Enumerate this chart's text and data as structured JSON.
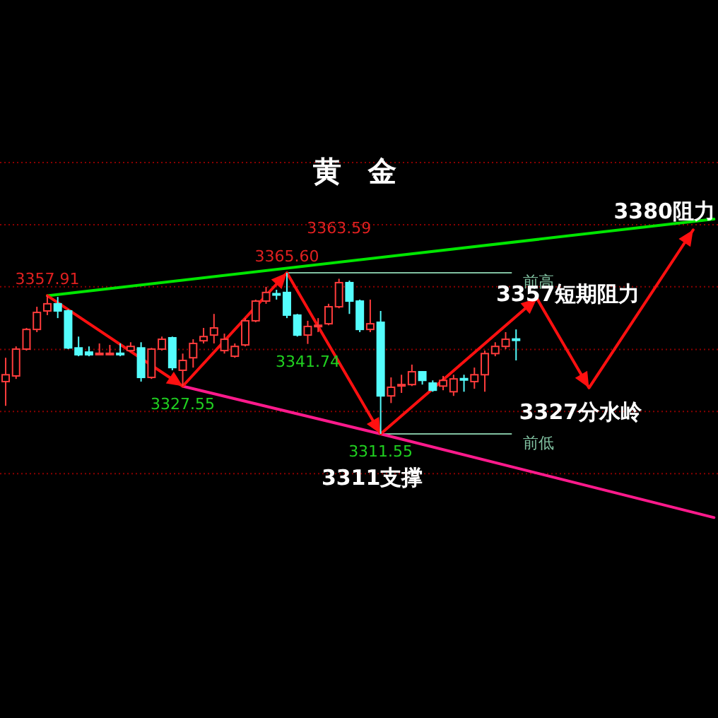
{
  "chart_data": {
    "type": "candlestick",
    "title": "黄 金",
    "categories": [
      null,
      null,
      null,
      null,
      null,
      null,
      null,
      null,
      null,
      null,
      null,
      null,
      null,
      null,
      null,
      null,
      null,
      null,
      null,
      null,
      null,
      null,
      null,
      null,
      null,
      null,
      null,
      null,
      null,
      null,
      null,
      null,
      null,
      null,
      null,
      null,
      null,
      null,
      null,
      null,
      null,
      null,
      null,
      null,
      null,
      null,
      null,
      null,
      null,
      null,
      null,
      null,
      null,
      null,
      null,
      null,
      null,
      null,
      null,
      null,
      null,
      null,
      null,
      null,
      null,
      null,
      null,
      null,
      null
    ],
    "ohlc": [
      [
        3329.1,
        3337.1,
        3321.0,
        3331.4
      ],
      [
        3331.0,
        3340.9,
        3330.0,
        3340.0
      ],
      [
        3340.0,
        3347.1,
        3339.5,
        3346.6
      ],
      [
        3346.6,
        3354.2,
        3345.7,
        3352.3
      ],
      [
        3352.8,
        3357.91,
        3351.4,
        3355.2
      ],
      [
        3355.2,
        3357.5,
        3350.4,
        3352.8
      ],
      [
        3352.8,
        3353.3,
        3340.0,
        3340.4
      ],
      [
        3340.4,
        3344.2,
        3337.6,
        3338.1
      ],
      [
        3339.0,
        3340.9,
        3337.6,
        3338.1
      ],
      [
        3338.5,
        3341.9,
        3338.1,
        3338.6
      ],
      [
        3338.5,
        3341.4,
        3338.0,
        3338.6
      ],
      [
        3338.6,
        3341.9,
        3337.6,
        3338.5
      ],
      [
        3339.5,
        3342.3,
        3339.0,
        3340.9
      ],
      [
        3340.4,
        3342.3,
        3329.1,
        3330.5
      ],
      [
        3330.5,
        3340.4,
        3330.0,
        3340.0
      ],
      [
        3340.0,
        3344.2,
        3339.5,
        3343.3
      ],
      [
        3343.8,
        3344.2,
        3332.9,
        3333.8
      ],
      [
        3332.9,
        3338.5,
        3327.55,
        3336.2
      ],
      [
        3337.1,
        3343.3,
        3333.8,
        3341.9
      ],
      [
        3342.8,
        3347.1,
        3341.9,
        3344.2
      ],
      [
        3344.7,
        3351.8,
        3341.9,
        3347.1
      ],
      [
        3339.5,
        3345.2,
        3338.5,
        3343.3
      ],
      [
        3337.6,
        3341.9,
        3337.1,
        3340.9
      ],
      [
        3341.4,
        3350.4,
        3340.9,
        3349.5
      ],
      [
        3349.5,
        3356.6,
        3349.0,
        3356.1
      ],
      [
        3356.1,
        3360.9,
        3355.2,
        3359.0
      ],
      [
        3358.6,
        3359.9,
        3356.6,
        3358.5
      ],
      [
        3359.0,
        3365.6,
        3350.4,
        3351.4
      ],
      [
        3351.4,
        3351.8,
        3344.2,
        3344.7
      ],
      [
        3344.7,
        3349.5,
        3341.74,
        3347.6
      ],
      [
        3347.9,
        3350.4,
        3345.7,
        3348.0
      ],
      [
        3348.5,
        3355.2,
        3348.0,
        3354.2
      ],
      [
        3354.2,
        3363.59,
        3353.7,
        3362.3
      ],
      [
        3362.3,
        3363.0,
        3351.8,
        3356.1
      ],
      [
        3356.1,
        3356.6,
        3345.7,
        3346.6
      ],
      [
        3346.6,
        3356.6,
        3345.7,
        3348.5
      ],
      [
        3349.0,
        3352.8,
        3311.55,
        3324.3
      ],
      [
        3324.3,
        3330.5,
        3321.9,
        3327.2
      ],
      [
        3328.0,
        3331.4,
        3325.3,
        3328.1
      ],
      [
        3328.1,
        3334.8,
        3327.6,
        3332.4
      ],
      [
        3332.4,
        3332.6,
        3328.1,
        3329.5
      ],
      [
        3328.6,
        3329.5,
        3325.7,
        3326.2
      ],
      [
        3327.6,
        3331.0,
        3326.2,
        3329.5
      ],
      [
        3325.7,
        3331.4,
        3324.3,
        3330.0
      ],
      [
        3330.1,
        3331.4,
        3325.7,
        3330.0
      ],
      [
        3329.1,
        3333.8,
        3326.7,
        3331.4
      ],
      [
        3331.4,
        3339.5,
        3325.7,
        3338.5
      ],
      [
        3338.5,
        3342.3,
        3337.6,
        3340.9
      ],
      [
        3340.9,
        3345.7,
        3340.0,
        3343.3
      ],
      [
        3343.4,
        3346.6,
        3336.2,
        3343.3
      ],
      null,
      null,
      null,
      null,
      null,
      null,
      null,
      null,
      null,
      null,
      null,
      null,
      null,
      null,
      null,
      null,
      null,
      null,
      null
    ],
    "yticks": [
      {
        "value": 3402.6,
        "label": null
      },
      {
        "value": 3381.7,
        "label": null
      },
      {
        "value": 3360.9,
        "label": null
      },
      {
        "value": 3339.9,
        "label": null
      },
      {
        "value": 3319.1,
        "label": null
      },
      {
        "value": 3298.2,
        "label": null
      }
    ],
    "grid": "y",
    "series": [
      {
        "type": "line",
        "color": "#00e600",
        "values": [
          null,
          null,
          null,
          null,
          3357.91,
          null,
          null,
          null,
          null,
          null,
          null,
          null,
          null,
          null,
          null,
          null,
          null,
          null,
          null,
          null,
          null,
          null,
          null,
          null,
          null,
          null,
          null,
          null,
          null,
          null,
          null,
          null,
          null,
          null,
          null,
          null,
          null,
          null,
          null,
          null,
          null,
          null,
          null,
          null,
          null,
          null,
          null,
          null,
          null,
          null,
          null,
          null,
          null,
          null,
          null,
          null,
          null,
          null,
          null,
          null,
          null,
          null,
          null,
          null,
          null,
          null,
          null,
          null,
          3383.6
        ]
      },
      {
        "type": "line",
        "color": "#ff1a8c",
        "values": [
          null,
          null,
          null,
          null,
          null,
          null,
          null,
          null,
          null,
          null,
          null,
          null,
          null,
          null,
          null,
          null,
          null,
          3327.55,
          null,
          null,
          null,
          null,
          null,
          null,
          null,
          null,
          null,
          null,
          null,
          null,
          null,
          null,
          null,
          null,
          null,
          null,
          3311.55,
          null,
          null,
          null,
          null,
          null,
          null,
          null,
          null,
          null,
          null,
          null,
          null,
          null,
          null,
          null,
          null,
          null,
          null,
          null,
          null,
          null,
          null,
          null,
          null,
          null,
          null,
          null,
          null,
          null,
          null,
          null,
          3283.5
        ]
      },
      {
        "type": "line",
        "color": "#ff1010",
        "values": [
          null,
          null,
          null,
          null,
          3357.91,
          null,
          null,
          null,
          null,
          null,
          null,
          null,
          null,
          null,
          null,
          null,
          null,
          3327.55,
          null,
          null,
          null,
          null,
          null,
          null,
          null,
          null,
          null,
          3365.6,
          null,
          null,
          null,
          null,
          null,
          null,
          null,
          null,
          3311.55,
          null,
          null,
          null,
          null,
          null,
          null,
          null,
          null,
          null,
          null,
          null,
          null,
          null,
          null,
          3357,
          null,
          null,
          null,
          null,
          3327,
          null,
          null,
          null,
          null,
          null,
          null,
          null,
          null,
          null,
          3380,
          null,
          null
        ]
      }
    ],
    "ref_lines": [
      {
        "axis": "y",
        "value": 3365.6,
        "label": "前高",
        "color": "#80c0a0"
      },
      {
        "axis": "y",
        "value": 3311.55,
        "label": "前低",
        "color": "#80c0a0"
      }
    ],
    "annotations": [
      {
        "text": "3357.91",
        "y": 3357.91
      },
      {
        "text": "3365.60",
        "y": 3365.6
      },
      {
        "text": "3363.59",
        "y": 3363.59
      },
      {
        "text": "3327.55",
        "y": 3327.55
      },
      {
        "text": "3341.74",
        "y": 3341.74
      },
      {
        "text": "3311.55",
        "y": 3311.55
      },
      "3357短期阻力",
      {
        "text": "3327分水岭",
        "y": 3327
      },
      {
        "text": "3380阻力",
        "y": 3380
      },
      {
        "text": "3311支撑",
        "y": 3311
      }
    ]
  }
}
